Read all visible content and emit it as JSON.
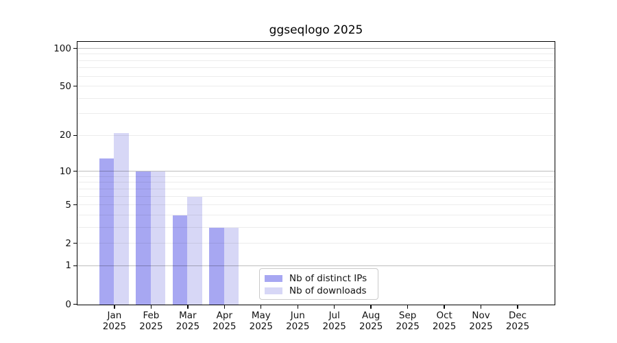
{
  "chart_data": {
    "type": "bar",
    "title": "ggseqlogo 2025",
    "categories": [
      "Jan 2025",
      "Feb 2025",
      "Mar 2025",
      "Apr 2025",
      "May 2025",
      "Jun 2025",
      "Jul 2025",
      "Aug 2025",
      "Sep 2025",
      "Oct 2025",
      "Nov 2025",
      "Dec 2025"
    ],
    "series": [
      {
        "name": "Nb of distinct IPs",
        "color": "#a7a7f2",
        "values": [
          13,
          10,
          4,
          3,
          null,
          null,
          null,
          null,
          null,
          null,
          null,
          null
        ]
      },
      {
        "name": "Nb of downloads",
        "color": "#d7d7f6",
        "values": [
          21,
          10,
          6,
          3,
          null,
          null,
          null,
          null,
          null,
          null,
          null,
          null
        ]
      }
    ],
    "y_scale": "log1p",
    "ylim": [
      0,
      100
    ],
    "y_ticks": [
      0,
      1,
      2,
      5,
      10,
      20,
      50,
      100
    ],
    "grid_major": [
      1,
      10,
      100
    ],
    "grid_minor": [
      2,
      3,
      4,
      5,
      6,
      7,
      8,
      9,
      20,
      30,
      40,
      50,
      60,
      70,
      80,
      90
    ],
    "grid": "on",
    "legend_position": "lower-center-inside",
    "xlabel": "",
    "ylabel": ""
  }
}
